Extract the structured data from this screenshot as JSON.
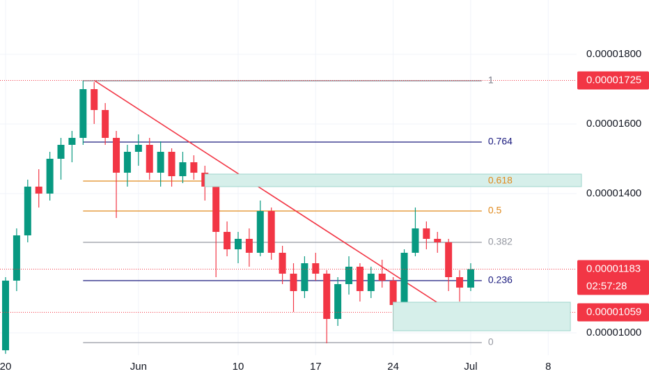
{
  "chart_data": {
    "type": "candlestick",
    "x": [
      "05-20",
      "05-21",
      "05-22",
      "05-23",
      "05-24",
      "05-25",
      "05-26",
      "05-27",
      "05-28",
      "05-29",
      "05-30",
      "05-31",
      "06-01",
      "06-02",
      "06-03",
      "06-04",
      "06-05",
      "06-06",
      "06-07",
      "06-08",
      "06-09",
      "06-10",
      "06-11",
      "06-12",
      "06-13",
      "06-14",
      "06-15",
      "06-16",
      "06-17",
      "06-18",
      "06-19",
      "06-20",
      "06-21",
      "06-22",
      "06-23",
      "06-24",
      "06-25",
      "06-26",
      "06-27",
      "06-28",
      "06-29",
      "06-30",
      "07-01"
    ],
    "open": [
      9.5e-06,
      1.15e-05,
      1.28e-05,
      1.42e-05,
      1.4e-05,
      1.5e-05,
      1.54e-05,
      1.56e-05,
      1.7e-05,
      1.64e-05,
      1.56e-05,
      1.46e-05,
      1.52e-05,
      1.54e-05,
      1.46e-05,
      1.52e-05,
      1.45e-05,
      1.49e-05,
      1.46e-05,
      1.42e-05,
      1.29e-05,
      1.24e-05,
      1.27e-05,
      1.23e-05,
      1.35e-05,
      1.23e-05,
      1.17e-05,
      1.12e-05,
      1.2e-05,
      1.17e-05,
      1.04e-05,
      1.14e-05,
      1.19e-05,
      1.12e-05,
      1.17e-05,
      1.15e-05,
      1.08e-05,
      1.23e-05,
      1.3e-05,
      1.27e-05,
      1.26e-05,
      1.16e-05,
      1.13e-05
    ],
    "high": [
      1.16e-05,
      1.3e-05,
      1.44e-05,
      1.47e-05,
      1.52e-05,
      1.56e-05,
      1.58e-05,
      1.725e-05,
      1.72e-05,
      1.66e-05,
      1.58e-05,
      1.54e-05,
      1.57e-05,
      1.56e-05,
      1.55e-05,
      1.53e-05,
      1.52e-05,
      1.51e-05,
      1.48e-05,
      1.43e-05,
      1.32e-05,
      1.29e-05,
      1.3e-05,
      1.38e-05,
      1.36e-05,
      1.25e-05,
      1.2e-05,
      1.22e-05,
      1.23e-05,
      1.18e-05,
      1.16e-05,
      1.22e-05,
      1.2e-05,
      1.19e-05,
      1.21e-05,
      1.16e-05,
      1.24e-05,
      1.36e-05,
      1.32e-05,
      1.29e-05,
      1.27e-05,
      1.18e-05,
      1.2e-05
    ],
    "low": [
      9.4e-06,
      1.12e-05,
      1.26e-05,
      1.36e-05,
      1.38e-05,
      1.44e-05,
      1.49e-05,
      1.54e-05,
      1.6e-05,
      1.54e-05,
      1.33e-05,
      1.42e-05,
      1.48e-05,
      1.44e-05,
      1.42e-05,
      1.42e-05,
      1.43e-05,
      1.44e-05,
      1.38e-05,
      1.16e-05,
      1.22e-05,
      1.2e-05,
      1.19e-05,
      1.22e-05,
      1.21e-05,
      1.14e-05,
      1.06e-05,
      1.1e-05,
      1.15e-05,
      9.7e-06,
      1.02e-05,
      1.11e-05,
      1.09e-05,
      1.1e-05,
      1.13e-05,
      1.01e-05,
      1.07e-05,
      1.22e-05,
      1.24e-05,
      1.23e-05,
      1.12e-05,
      1.09e-05,
      1.12e-05
    ],
    "close": [
      1.15e-05,
      1.28e-05,
      1.42e-05,
      1.4e-05,
      1.5e-05,
      1.54e-05,
      1.56e-05,
      1.7e-05,
      1.64e-05,
      1.56e-05,
      1.46e-05,
      1.52e-05,
      1.54e-05,
      1.46e-05,
      1.52e-05,
      1.45e-05,
      1.49e-05,
      1.46e-05,
      1.42e-05,
      1.29e-05,
      1.24e-05,
      1.27e-05,
      1.23e-05,
      1.35e-05,
      1.23e-05,
      1.17e-05,
      1.12e-05,
      1.2e-05,
      1.17e-05,
      1.04e-05,
      1.14e-05,
      1.19e-05,
      1.12e-05,
      1.17e-05,
      1.15e-05,
      1.08e-05,
      1.23e-05,
      1.3e-05,
      1.27e-05,
      1.26e-05,
      1.16e-05,
      1.13e-05,
      1.183e-05
    ],
    "up_color": "#089981",
    "down_color": "#f23645",
    "xlim": [
      "05-20",
      "07-11"
    ],
    "xticks": [
      {
        "value": "05-20",
        "label": "20"
      },
      {
        "value": "06-01",
        "label": "Jun"
      },
      {
        "value": "06-10",
        "label": "10"
      },
      {
        "value": "06-17",
        "label": "17"
      },
      {
        "value": "06-24",
        "label": "24"
      },
      {
        "value": "07-01",
        "label": "Jul"
      },
      {
        "value": "07-08",
        "label": "8"
      }
    ],
    "ylim": [
      9.36e-06,
      1.956e-05
    ],
    "yticks": [
      {
        "value": 1.8e-05,
        "label": "0.00001800"
      },
      {
        "value": 1.6e-05,
        "label": "0.00001600"
      },
      {
        "value": 1.4e-05,
        "label": "0.00001400"
      },
      {
        "value": 1e-05,
        "label": "0.00001000"
      }
    ],
    "grid": true,
    "fib_levels": [
      {
        "level": 1,
        "value": 1.724e-05,
        "color": "#787b86"
      },
      {
        "level": 0.764,
        "value": 1.548e-05,
        "color": "#1a1a7e"
      },
      {
        "level": 0.618,
        "value": 1.436e-05,
        "color": "#e08a1e"
      },
      {
        "level": 0.5,
        "value": 1.35e-05,
        "color": "#e08a1e"
      },
      {
        "level": 0.382,
        "value": 1.26e-05,
        "color": "#9598a1"
      },
      {
        "level": 0.236,
        "value": 1.15e-05,
        "color": "#1a1a7e"
      },
      {
        "level": 0,
        "value": 9.72e-06,
        "color": "#9598a1"
      }
    ],
    "fib_start": "05-27",
    "fib_end": "07-02",
    "trendline": {
      "color": "#f23645",
      "x": [
        "05-28",
        "06-29"
      ],
      "values": [
        1.725e-05,
        1.066e-05
      ]
    },
    "zones": [
      {
        "x": [
          "06-07",
          "07-11"
        ],
        "values": [
          1.456e-05,
          1.42e-05
        ],
        "color": "#d6efea"
      },
      {
        "x": [
          "06-24",
          "07-10"
        ],
        "values": [
          1.088e-05,
          1.006e-05
        ],
        "color": "#d6efea"
      }
    ],
    "price_labels": [
      {
        "value": 1.725e-05,
        "label": "0.00001725",
        "color": "#f23645"
      },
      {
        "value": 1.183e-05,
        "label": "0.00001183",
        "countdown": "02:57:28",
        "color": "#f23645"
      },
      {
        "value": 1.059e-05,
        "label": "0.00001059",
        "color": "#f23645"
      }
    ]
  }
}
